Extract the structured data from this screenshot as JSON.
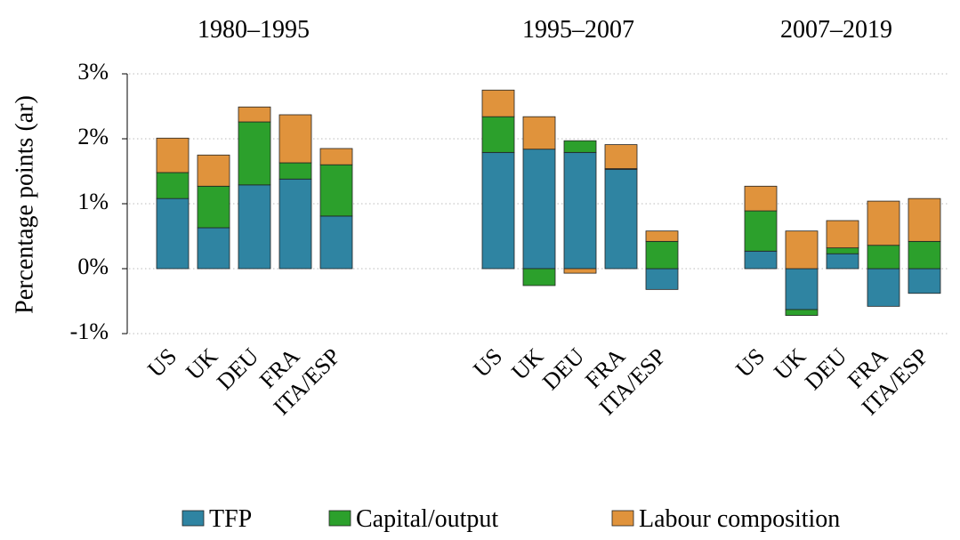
{
  "chart_data": {
    "type": "bar",
    "stacked": true,
    "ylabel": "Percentage points (ar)",
    "ylim": [
      -1,
      3
    ],
    "yticks": [
      {
        "value": -1,
        "label": "-1%"
      },
      {
        "value": 0,
        "label": "0%"
      },
      {
        "value": 1,
        "label": "1%"
      },
      {
        "value": 2,
        "label": "2%"
      },
      {
        "value": 3,
        "label": "3%"
      }
    ],
    "grid": true,
    "legend": "bottom",
    "series": [
      {
        "name": "TFP",
        "color": "#2f84a2"
      },
      {
        "name": "Capital/output",
        "color": "#2ca02c"
      },
      {
        "name": "Labour composition",
        "color": "#e0933c"
      }
    ],
    "panels": [
      {
        "title": "1980–1995",
        "categories": [
          "US",
          "UK",
          "DEU",
          "FRA",
          "ITA/ESP"
        ],
        "series": [
          {
            "values": [
              1.08,
              0.63,
              1.29,
              1.38,
              0.81
            ]
          },
          {
            "values": [
              0.4,
              0.64,
              0.97,
              0.25,
              0.79
            ]
          },
          {
            "values": [
              0.53,
              0.48,
              0.23,
              0.74,
              0.25
            ]
          }
        ]
      },
      {
        "title": "1995–2007",
        "categories": [
          "US",
          "UK",
          "DEU",
          "FRA",
          "ITA/ESP"
        ],
        "series": [
          {
            "values": [
              1.79,
              1.84,
              1.79,
              1.53,
              -0.32
            ]
          },
          {
            "values": [
              0.55,
              -0.26,
              0.18,
              0.01,
              0.42
            ]
          },
          {
            "values": [
              0.41,
              0.5,
              -0.07,
              0.37,
              0.16
            ]
          }
        ]
      },
      {
        "title": "2007–2019",
        "categories": [
          "US",
          "UK",
          "DEU",
          "FRA",
          "ITA/ESP"
        ],
        "series": [
          {
            "values": [
              0.27,
              -0.63,
              0.23,
              -0.58,
              -0.38
            ]
          },
          {
            "values": [
              0.62,
              -0.09,
              0.09,
              0.36,
              0.42
            ]
          },
          {
            "values": [
              0.38,
              0.58,
              0.42,
              0.68,
              0.66
            ]
          }
        ]
      }
    ]
  }
}
